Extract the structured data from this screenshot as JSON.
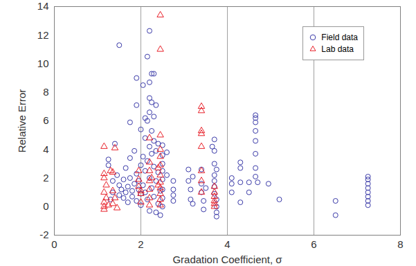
{
  "chart_data": {
    "type": "scatter",
    "x_label": "Gradation Coefficient, σ",
    "y_label": "Relative Error",
    "xlim": [
      0,
      8
    ],
    "xticks": [
      0,
      2,
      4,
      6,
      8
    ],
    "ylim": [
      -2,
      14
    ],
    "yticks": [
      -2,
      0,
      2,
      4,
      6,
      8,
      10,
      12,
      14
    ],
    "grid": "x",
    "legend": "top-right",
    "series": [
      {
        "name": "Field data",
        "color": "#3a3aa8",
        "marker": "circle",
        "x": [
          1.3,
          1.35,
          1.35,
          1.4,
          1.25,
          1.25,
          1.45,
          1.5,
          1.5,
          1.5,
          1.55,
          1.6,
          1.6,
          1.65,
          1.65,
          1.7,
          1.7,
          1.75,
          1.75,
          1.75,
          1.8,
          1.8,
          1.85,
          1.85,
          1.9,
          1.9,
          1.9,
          1.9,
          1.95,
          1.95,
          2.0,
          2.0,
          2.0,
          2.0,
          2.05,
          2.05,
          2.05,
          2.1,
          2.1,
          2.1,
          2.1,
          2.15,
          2.15,
          2.15,
          2.15,
          2.2,
          2.2,
          2.2,
          2.2,
          2.2,
          2.2,
          2.2,
          2.25,
          2.25,
          2.25,
          2.25,
          2.25,
          2.3,
          2.3,
          2.3,
          2.3,
          2.3,
          2.35,
          2.35,
          2.35,
          2.35,
          2.4,
          2.4,
          2.4,
          2.45,
          2.45,
          2.5,
          2.5,
          2.5,
          2.5,
          2.5,
          2.5,
          2.5,
          2.5,
          2.6,
          2.6,
          2.75,
          2.75,
          2.75,
          2.75,
          3.1,
          3.1,
          3.15,
          3.15,
          3.2,
          3.2,
          3.4,
          3.4,
          3.4,
          3.45,
          3.45,
          3.5,
          3.65,
          3.7,
          3.7,
          3.7,
          3.7,
          3.7,
          3.7,
          3.7,
          3.75,
          3.75,
          3.75,
          3.75,
          3.75,
          4.1,
          4.1,
          4.1,
          4.3,
          4.3,
          4.3,
          4.3,
          4.5,
          4.5,
          4.65,
          4.65,
          4.65,
          4.65,
          4.65,
          4.65,
          4.65,
          4.65,
          4.7,
          4.95,
          5.2,
          6.5,
          6.5,
          7.25,
          7.25,
          7.25,
          7.25,
          7.25,
          7.25,
          7.25,
          7.25
        ],
        "values": [
          0.5,
          1.0,
          1.8,
          4.4,
          3.3,
          2.9,
          2.2,
          1.5,
          0.8,
          11.3,
          1.2,
          0.6,
          1.9,
          1.0,
          2.7,
          1.4,
          0.3,
          5.9,
          3.4,
          2.0,
          1.1,
          0.7,
          3.9,
          1.6,
          9.0,
          7.1,
          2.3,
          0.4,
          1.8,
          1.2,
          5.4,
          2.9,
          0.9,
          0.1,
          8.5,
          3.5,
          1.5,
          6.2,
          4.8,
          2.5,
          1.0,
          10.5,
          6.0,
          3.2,
          0.5,
          12.3,
          8.7,
          7.6,
          6.6,
          4.2,
          2.0,
          -0.3,
          9.3,
          7.3,
          5.3,
          3.7,
          1.3,
          9.3,
          6.3,
          4.6,
          2.8,
          0.7,
          7.1,
          3.9,
          1.8,
          -0.4,
          4.4,
          2.4,
          0.2,
          1.1,
          -0.6,
          4.3,
          3.6,
          3.0,
          2.5,
          1.9,
          1.2,
          0.6,
          0.0,
          3.8,
          2.2,
          1.8,
          1.2,
          0.8,
          0.4,
          2.6,
          1.8,
          1.2,
          0.5,
          2.1,
          0.2,
          2.6,
          1.6,
          1.0,
          0.4,
          -0.2,
          1.3,
          4.2,
          4.7,
          3.9,
          3.0,
          2.2,
          1.8,
          1.4,
          0.9,
          0.5,
          0.0,
          -0.4,
          -0.7,
          2.6,
          2.0,
          1.6,
          1.0,
          3.1,
          2.7,
          1.7,
          0.3,
          1.7,
          1.0,
          6.4,
          6.2,
          5.9,
          5.3,
          4.6,
          3.7,
          2.7,
          2.1,
          1.7,
          1.6,
          0.5,
          0.4,
          -0.6,
          2.1,
          1.9,
          1.6,
          1.3,
          1.0,
          0.7,
          0.4,
          0.1
        ]
      },
      {
        "name": "Lab data",
        "color": "#e8212a",
        "marker": "triangle",
        "x": [
          1.15,
          1.15,
          1.15,
          1.15,
          1.15,
          1.15,
          1.15,
          1.2,
          1.2,
          1.25,
          1.3,
          1.35,
          1.35,
          1.35,
          1.4,
          1.4,
          1.45,
          1.95,
          1.95,
          1.95,
          2.0,
          2.0,
          2.0,
          2.2,
          2.2,
          2.2,
          2.2,
          2.2,
          2.2,
          2.2,
          2.25,
          2.4,
          2.4,
          2.45,
          2.45,
          2.45,
          2.45,
          2.45,
          2.45,
          2.45,
          2.45,
          2.45,
          2.45,
          2.45,
          2.45,
          3.4,
          3.4,
          3.4,
          3.4,
          3.4,
          3.4,
          3.4,
          3.4,
          3.7,
          3.7,
          3.7,
          3.7,
          3.7,
          3.7
        ],
        "values": [
          4.2,
          2.3,
          2.0,
          1.0,
          0.3,
          0.0,
          -0.2,
          1.5,
          0.6,
          0.1,
          2.5,
          2.4,
          1.1,
          0.2,
          4.1,
          0.6,
          -0.1,
          2.5,
          1.9,
          1.4,
          1.1,
          0.9,
          0.3,
          4.8,
          3.1,
          2.5,
          1.8,
          1.2,
          0.6,
          0.1,
          2.0,
          2.7,
          1.5,
          13.4,
          11.0,
          5.0,
          4.0,
          3.5,
          2.9,
          2.2,
          1.7,
          1.3,
          0.9,
          0.5,
          0.1,
          7.0,
          6.7,
          5.3,
          5.1,
          4.2,
          2.5,
          1.8,
          1.0,
          1.4,
          1.0,
          0.7,
          0.4,
          0.2,
          0.0
        ]
      }
    ]
  }
}
